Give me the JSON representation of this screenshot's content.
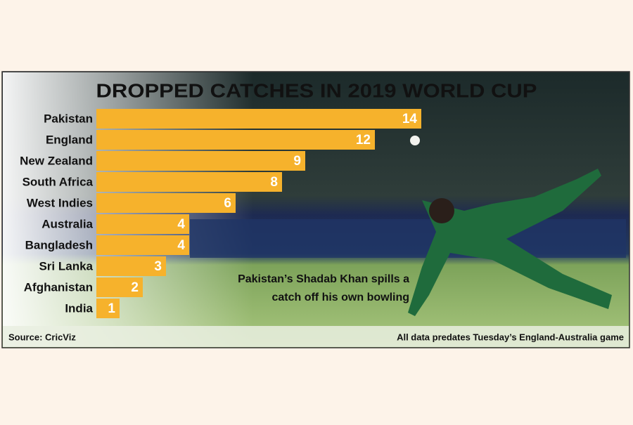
{
  "chart_data": {
    "type": "bar",
    "orientation": "horizontal",
    "title": "DROPPED CATCHES IN 2019 WORLD CUP",
    "categories": [
      "Pakistan",
      "England",
      "New Zealand",
      "South Africa",
      "West Indies",
      "Australia",
      "Bangladesh",
      "Sri Lanka",
      "Afghanistan",
      "India"
    ],
    "values": [
      14,
      12,
      9,
      8,
      6,
      4,
      4,
      3,
      2,
      1
    ],
    "color": "#f6b22c",
    "caption": [
      "Pakistan’s Shadab Khan spills a",
      "catch off his own bowling"
    ],
    "source": "Source: CricViz",
    "note": "All data predates Tuesday’s England-Australia game"
  }
}
